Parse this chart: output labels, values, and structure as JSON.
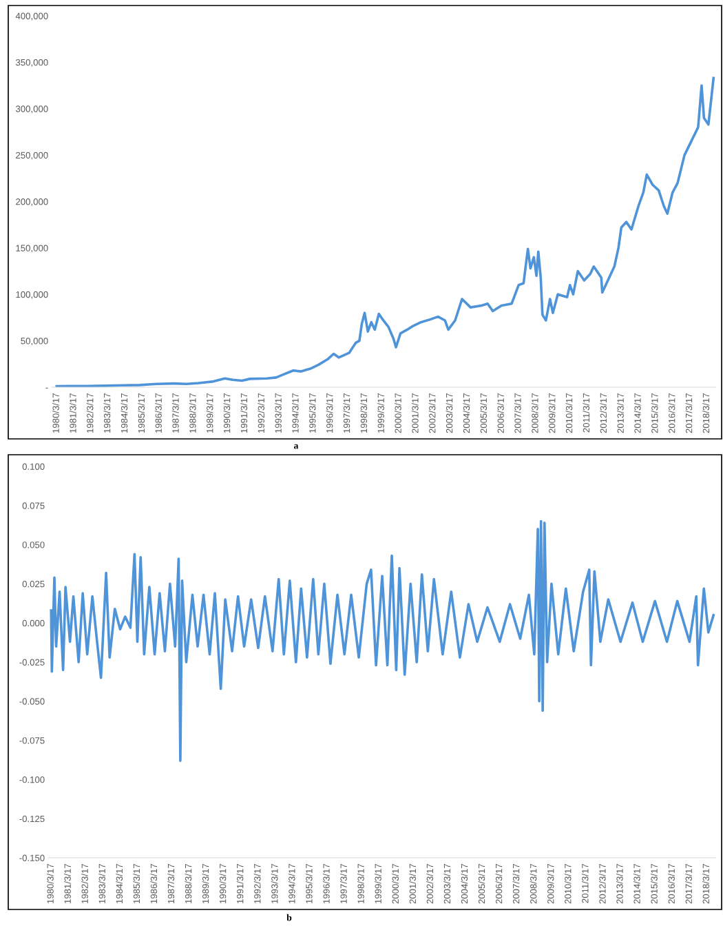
{
  "chart_data": [
    {
      "type": "line",
      "annotations": [
        "a"
      ],
      "xlim": [
        "1979-12-01",
        "2018-10-01"
      ],
      "ylim": [
        0,
        400000
      ],
      "yticks": [
        {
          "value": 0,
          "label": "-"
        },
        {
          "value": 50000,
          "label": "50,000"
        },
        {
          "value": 100000,
          "label": "100,000"
        },
        {
          "value": 150000,
          "label": "150,000"
        },
        {
          "value": 200000,
          "label": "200,000"
        },
        {
          "value": 250000,
          "label": "250,000"
        },
        {
          "value": 300000,
          "label": "300,000"
        },
        {
          "value": 350000,
          "label": "350,000"
        },
        {
          "value": 400000,
          "label": "400,000"
        }
      ],
      "xticks": [
        {
          "value": "1980-03-17",
          "label": "1980/3/17"
        },
        {
          "value": "1981-03-17",
          "label": "1981/3/17"
        },
        {
          "value": "1982-03-17",
          "label": "1982/3/17"
        },
        {
          "value": "1983-03-17",
          "label": "1983/3/17"
        },
        {
          "value": "1984-03-17",
          "label": "1984/3/17"
        },
        {
          "value": "1985-03-17",
          "label": "1985/3/17"
        },
        {
          "value": "1986-03-17",
          "label": "1986/3/17"
        },
        {
          "value": "1987-03-17",
          "label": "1987/3/17"
        },
        {
          "value": "1988-03-17",
          "label": "1988/3/17"
        },
        {
          "value": "1989-03-17",
          "label": "1989/3/17"
        },
        {
          "value": "1990-03-17",
          "label": "1990/3/17"
        },
        {
          "value": "1991-03-17",
          "label": "1991/3/17"
        },
        {
          "value": "1992-03-17",
          "label": "1992/3/17"
        },
        {
          "value": "1993-03-17",
          "label": "1993/3/17"
        },
        {
          "value": "1994-03-17",
          "label": "1994/3/17"
        },
        {
          "value": "1995-03-17",
          "label": "1995/3/17"
        },
        {
          "value": "1996-03-17",
          "label": "1996/3/17"
        },
        {
          "value": "1997-03-17",
          "label": "1997/3/17"
        },
        {
          "value": "1998-03-17",
          "label": "1998/3/17"
        },
        {
          "value": "1999-03-17",
          "label": "1999/3/17"
        },
        {
          "value": "2000-03-17",
          "label": "2000/3/17"
        },
        {
          "value": "2001-03-17",
          "label": "2001/3/17"
        },
        {
          "value": "2002-03-17",
          "label": "2002/3/17"
        },
        {
          "value": "2003-03-17",
          "label": "2003/3/17"
        },
        {
          "value": "2004-03-17",
          "label": "2004/3/17"
        },
        {
          "value": "2005-03-17",
          "label": "2005/3/17"
        },
        {
          "value": "2006-03-17",
          "label": "2006/3/17"
        },
        {
          "value": "2007-03-17",
          "label": "2007/3/17"
        },
        {
          "value": "2008-03-17",
          "label": "2008/3/17"
        },
        {
          "value": "2009-03-17",
          "label": "2009/3/17"
        },
        {
          "value": "2010-03-17",
          "label": "2010/3/17"
        },
        {
          "value": "2011-03-17",
          "label": "2011/3/17"
        },
        {
          "value": "2012-03-17",
          "label": "2012/3/17"
        },
        {
          "value": "2013-03-17",
          "label": "2013/3/17"
        },
        {
          "value": "2014-03-17",
          "label": "2014/3/17"
        },
        {
          "value": "2015-03-17",
          "label": "2015/3/17"
        },
        {
          "value": "2016-03-17",
          "label": "2016/3/17"
        },
        {
          "value": "2017-03-17",
          "label": "2017/3/17"
        },
        {
          "value": "2018-03-17",
          "label": "2018/3/17"
        }
      ],
      "x": [
        "1980-03-17",
        "1981-01-15",
        "1982-01-15",
        "1983-01-15",
        "1984-01-15",
        "1985-01-15",
        "1986-01-15",
        "1987-01-15",
        "1987-10-20",
        "1988-07-01",
        "1989-04-20",
        "1990-01-15",
        "1990-07-01",
        "1991-01-15",
        "1991-07-01",
        "1992-07-01",
        "1993-01-15",
        "1993-07-01",
        "1994-01-15",
        "1994-07-01",
        "1995-01-15",
        "1995-07-01",
        "1996-01-15",
        "1996-05-25",
        "1996-09-12",
        "1997-04-20",
        "1997-09-12",
        "1997-11-25",
        "1998-01-15",
        "1998-03-17",
        "1998-05-25",
        "1998-08-07",
        "1998-10-20",
        "1999-01-15",
        "1999-04-20",
        "1999-08-07",
        "1999-11-25",
        "2000-01-15",
        "2000-04-20",
        "2000-09-12",
        "2001-01-15",
        "2001-07-01",
        "2002-01-15",
        "2002-07-01",
        "2002-11-25",
        "2003-02-05",
        "2003-07-01",
        "2003-11-25",
        "2004-05-25",
        "2005-01-15",
        "2005-05-25",
        "2005-09-12",
        "2006-03-17",
        "2006-10-20",
        "2007-03-17",
        "2007-07-01",
        "2007-10-01",
        "2007-11-25",
        "2008-02-05",
        "2008-04-01",
        "2008-05-10",
        "2008-07-01",
        "2008-08-07",
        "2008-10-20",
        "2009-01-15",
        "2009-03-17",
        "2009-07-01",
        "2010-01-15",
        "2010-03-17",
        "2010-05-25",
        "2010-09-01",
        "2011-01-15",
        "2011-05-25",
        "2011-08-07",
        "2012-01-15",
        "2012-02-05",
        "2012-07-01",
        "2012-10-20",
        "2013-01-15",
        "2013-03-17",
        "2013-07-01",
        "2013-10-20",
        "2014-03-17",
        "2014-07-01",
        "2014-09-12",
        "2015-01-15",
        "2015-05-25",
        "2015-09-12",
        "2015-11-25",
        "2016-03-17",
        "2016-07-01",
        "2016-11-25",
        "2017-04-20",
        "2017-09-12",
        "2017-11-25",
        "2018-01-15",
        "2018-04-20",
        "2018-08-07"
      ],
      "series": [
        {
          "color": "#4f94d8",
          "values": [
            1000,
            1200,
            1300,
            1600,
            2000,
            2300,
            3500,
            4000,
            3500,
            4500,
            6000,
            9500,
            8000,
            7000,
            9000,
            9500,
            10500,
            14000,
            18000,
            17000,
            20000,
            24000,
            30000,
            36000,
            32000,
            37000,
            48000,
            50000,
            68000,
            80000,
            60000,
            70000,
            62000,
            79000,
            72000,
            65000,
            52000,
            43000,
            58000,
            62000,
            66000,
            70000,
            73000,
            76000,
            72000,
            62000,
            72000,
            95000,
            86000,
            88000,
            90000,
            82000,
            88000,
            90000,
            110000,
            112000,
            149000,
            128000,
            140000,
            120000,
            146000,
            118000,
            78000,
            72000,
            95000,
            80000,
            100000,
            97000,
            110000,
            100000,
            125000,
            115000,
            122000,
            130000,
            118000,
            102000,
            118000,
            130000,
            150000,
            172000,
            178000,
            170000,
            195000,
            210000,
            229000,
            218000,
            212000,
            195000,
            187000,
            210000,
            220000,
            250000,
            265000,
            280000,
            325000,
            290000,
            283000,
            333000
          ]
        }
      ]
    },
    {
      "type": "line",
      "annotations": [
        "b"
      ],
      "xlim": [
        "1980-01-15",
        "2018-10-01"
      ],
      "ylim": [
        -0.15,
        0.1
      ],
      "yticks": [
        {
          "value": -0.15,
          "label": "-0.150"
        },
        {
          "value": -0.125,
          "label": "-0.125"
        },
        {
          "value": -0.1,
          "label": "-0.100"
        },
        {
          "value": -0.075,
          "label": "-0.075"
        },
        {
          "value": -0.05,
          "label": "-0.050"
        },
        {
          "value": -0.025,
          "label": "-0.025"
        },
        {
          "value": 0,
          "label": "0.000"
        },
        {
          "value": 0.025,
          "label": "0.025"
        },
        {
          "value": 0.05,
          "label": "0.050"
        },
        {
          "value": 0.075,
          "label": "0.075"
        },
        {
          "value": 0.1,
          "label": "0.100"
        }
      ],
      "xticks": [
        {
          "value": "1980-03-17",
          "label": "1980/3/17"
        },
        {
          "value": "1981-03-17",
          "label": "1981/3/17"
        },
        {
          "value": "1982-03-17",
          "label": "1982/3/17"
        },
        {
          "value": "1983-03-17",
          "label": "1983/3/17"
        },
        {
          "value": "1984-03-17",
          "label": "1984/3/17"
        },
        {
          "value": "1985-03-17",
          "label": "1985/3/17"
        },
        {
          "value": "1986-03-17",
          "label": "1986/3/17"
        },
        {
          "value": "1987-03-17",
          "label": "1987/3/17"
        },
        {
          "value": "1988-03-17",
          "label": "1988/3/17"
        },
        {
          "value": "1989-03-17",
          "label": "1989/3/17"
        },
        {
          "value": "1990-03-17",
          "label": "1990/3/17"
        },
        {
          "value": "1991-03-17",
          "label": "1991/3/17"
        },
        {
          "value": "1992-03-17",
          "label": "1992/3/17"
        },
        {
          "value": "1993-03-17",
          "label": "1993/3/17"
        },
        {
          "value": "1994-03-17",
          "label": "1994/3/17"
        },
        {
          "value": "1995-03-17",
          "label": "1995/3/17"
        },
        {
          "value": "1996-03-17",
          "label": "1996/3/17"
        },
        {
          "value": "1997-03-17",
          "label": "1997/3/17"
        },
        {
          "value": "1998-03-17",
          "label": "1998/3/17"
        },
        {
          "value": "1999-03-17",
          "label": "1999/3/17"
        },
        {
          "value": "2000-03-17",
          "label": "2000/3/17"
        },
        {
          "value": "2001-03-17",
          "label": "2001/3/17"
        },
        {
          "value": "2002-03-17",
          "label": "2002/3/17"
        },
        {
          "value": "2003-03-17",
          "label": "2003/3/17"
        },
        {
          "value": "2004-03-17",
          "label": "2004/3/17"
        },
        {
          "value": "2005-03-17",
          "label": "2005/3/17"
        },
        {
          "value": "2006-03-17",
          "label": "2006/3/17"
        },
        {
          "value": "2007-03-17",
          "label": "2007/3/17"
        },
        {
          "value": "2008-03-17",
          "label": "2008/3/17"
        },
        {
          "value": "2009-03-17",
          "label": "2009/3/17"
        },
        {
          "value": "2010-03-17",
          "label": "2010/3/17"
        },
        {
          "value": "2011-03-17",
          "label": "2011/3/17"
        },
        {
          "value": "2012-03-17",
          "label": "2012/3/17"
        },
        {
          "value": "2013-03-17",
          "label": "2013/3/17"
        },
        {
          "value": "2014-03-17",
          "label": "2014/3/17"
        },
        {
          "value": "2015-03-17",
          "label": "2015/3/17"
        },
        {
          "value": "2016-03-17",
          "label": "2016/3/17"
        },
        {
          "value": "2017-03-17",
          "label": "2017/3/17"
        },
        {
          "value": "2018-03-17",
          "label": "2018/3/17"
        }
      ],
      "x": [
        "1980-03-17",
        "1980-04-01",
        "1980-05-25",
        "1980-07-01",
        "1980-09-12",
        "1980-11-25",
        "1981-01-15",
        "1981-04-20",
        "1981-07-01",
        "1981-10-20",
        "1982-01-15",
        "1982-04-20",
        "1982-08-07",
        "1982-11-25",
        "1983-02-05",
        "1983-05-25",
        "1983-08-07",
        "1983-11-25",
        "1984-03-17",
        "1984-07-01",
        "1984-10-20",
        "1985-01-15",
        "1985-03-17",
        "1985-05-25",
        "1985-08-07",
        "1985-11-25",
        "1986-03-17",
        "1986-07-01",
        "1986-10-20",
        "1987-02-05",
        "1987-05-25",
        "1987-08-07",
        "1987-09-12",
        "1987-10-20",
        "1988-01-15",
        "1988-05-25",
        "1988-09-12",
        "1989-01-15",
        "1989-05-25",
        "1989-09-12",
        "1990-01-15",
        "1990-04-20",
        "1990-09-12",
        "1991-01-15",
        "1991-05-25",
        "1991-10-20",
        "1992-03-17",
        "1992-08-07",
        "1993-01-15",
        "1993-05-25",
        "1993-09-12",
        "1994-01-15",
        "1994-05-25",
        "1994-09-12",
        "1995-01-15",
        "1995-05-25",
        "1995-09-12",
        "1996-01-15",
        "1996-05-25",
        "1996-10-20",
        "1997-03-17",
        "1997-08-07",
        "1998-01-15",
        "1998-07-01",
        "1998-10-01",
        "1999-01-15",
        "1999-05-25",
        "1999-09-12",
        "1999-12-15",
        "2000-03-17",
        "2000-05-25",
        "2000-09-12",
        "2001-01-15",
        "2001-05-25",
        "2001-09-12",
        "2002-01-15",
        "2002-05-25",
        "2002-11-25",
        "2003-05-25",
        "2003-11-25",
        "2004-05-25",
        "2004-11-25",
        "2005-07-01",
        "2006-03-17",
        "2006-10-20",
        "2007-05-25",
        "2007-11-25",
        "2008-03-17",
        "2008-06-01",
        "2008-07-01",
        "2008-08-07",
        "2008-09-12",
        "2008-10-20",
        "2008-12-15",
        "2009-03-17",
        "2009-08-07",
        "2010-01-15",
        "2010-07-01",
        "2011-01-15",
        "2011-05-25",
        "2011-07-01",
        "2011-09-12",
        "2012-01-15",
        "2012-07-01",
        "2013-03-17",
        "2013-11-25",
        "2014-07-01",
        "2015-03-17",
        "2015-11-25",
        "2016-07-01",
        "2017-03-17",
        "2017-08-07",
        "2017-09-12",
        "2018-01-15",
        "2018-04-20",
        "2018-08-07"
      ],
      "series": [
        {
          "color": "#4f94d8",
          "values": [
            0.008,
            -0.031,
            0.029,
            -0.015,
            0.02,
            -0.03,
            0.023,
            -0.012,
            0.017,
            -0.025,
            0.019,
            -0.02,
            0.017,
            -0.015,
            -0.035,
            0.032,
            -0.022,
            0.009,
            -0.004,
            0.004,
            -0.003,
            0.044,
            -0.012,
            0.042,
            -0.02,
            0.023,
            -0.02,
            0.019,
            -0.018,
            0.025,
            -0.015,
            0.041,
            -0.088,
            0.027,
            -0.025,
            0.018,
            -0.015,
            0.018,
            -0.02,
            0.019,
            -0.042,
            0.015,
            -0.018,
            0.017,
            -0.015,
            0.015,
            -0.016,
            0.017,
            -0.018,
            0.028,
            -0.02,
            0.027,
            -0.025,
            0.022,
            -0.022,
            0.028,
            -0.02,
            0.025,
            -0.026,
            0.018,
            -0.02,
            0.018,
            -0.022,
            0.025,
            0.034,
            -0.027,
            0.03,
            -0.027,
            0.043,
            -0.03,
            0.035,
            -0.033,
            0.025,
            -0.025,
            0.031,
            -0.018,
            0.028,
            -0.02,
            0.02,
            -0.022,
            0.012,
            -0.012,
            0.01,
            -0.012,
            0.012,
            -0.01,
            0.018,
            -0.02,
            0.06,
            -0.05,
            0.065,
            -0.056,
            0.064,
            -0.025,
            0.025,
            -0.02,
            0.022,
            -0.018,
            0.02,
            0.034,
            -0.027,
            0.033,
            -0.012,
            0.015,
            -0.012,
            0.013,
            -0.012,
            0.014,
            -0.012,
            0.014,
            -0.012,
            0.017,
            -0.027,
            0.022,
            -0.006,
            0.005
          ]
        }
      ]
    }
  ]
}
